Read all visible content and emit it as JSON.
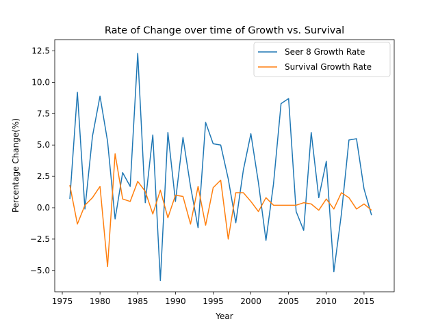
{
  "chart_data": {
    "type": "line",
    "title": "Rate of Change over time of Growth vs. Survival",
    "xlabel": "Year",
    "ylabel": "Percentage Change(%)",
    "xlim": [
      1974,
      2019
    ],
    "ylim": [
      -6.7,
      13.4
    ],
    "xticks": [
      1975,
      1980,
      1985,
      1990,
      1995,
      2000,
      2005,
      2010,
      2015
    ],
    "yticks": [
      -5.0,
      -2.5,
      0.0,
      2.5,
      5.0,
      7.5,
      10.0,
      12.5
    ],
    "ytick_labels": [
      "−5.0",
      "−2.5",
      "0.0",
      "2.5",
      "5.0",
      "7.5",
      "10.0",
      "12.5"
    ],
    "legend_position": "top-right",
    "x": [
      1976,
      1977,
      1978,
      1979,
      1980,
      1981,
      1982,
      1983,
      1984,
      1985,
      1986,
      1987,
      1988,
      1989,
      1990,
      1991,
      1992,
      1993,
      1994,
      1995,
      1996,
      1997,
      1998,
      1999,
      2000,
      2001,
      2002,
      2003,
      2004,
      2005,
      2006,
      2007,
      2008,
      2009,
      2010,
      2011,
      2012,
      2013,
      2014,
      2015,
      2016
    ],
    "series": [
      {
        "name": "Seer 8 Growth Rate",
        "color": "#1f77b4",
        "values": [
          0.7,
          9.2,
          -0.1,
          5.7,
          8.9,
          5.3,
          -0.9,
          2.8,
          1.7,
          12.3,
          0.4,
          5.8,
          -5.8,
          6.0,
          0.5,
          5.6,
          1.7,
          -1.6,
          6.8,
          5.1,
          5.0,
          2.3,
          -1.2,
          3.0,
          5.9,
          2.0,
          -2.6,
          1.9,
          8.3,
          8.7,
          -0.3,
          -1.8,
          6.0,
          0.8,
          3.7,
          -5.1,
          -0.5,
          5.4,
          5.5,
          1.5,
          -0.6
        ]
      },
      {
        "name": "Survival Growth Rate",
        "color": "#ff7f0e",
        "values": [
          1.8,
          -1.3,
          0.2,
          0.8,
          1.7,
          -4.7,
          4.3,
          0.7,
          0.5,
          2.1,
          1.3,
          -0.5,
          1.4,
          -0.8,
          1.0,
          0.9,
          -1.3,
          1.7,
          -1.4,
          1.6,
          2.2,
          -2.5,
          1.2,
          1.2,
          0.5,
          -0.3,
          0.8,
          0.2,
          0.2,
          0.2,
          0.2,
          0.4,
          0.3,
          -0.2,
          0.7,
          -0.1,
          1.2,
          0.8,
          -0.1,
          0.3,
          -0.2
        ]
      }
    ]
  }
}
